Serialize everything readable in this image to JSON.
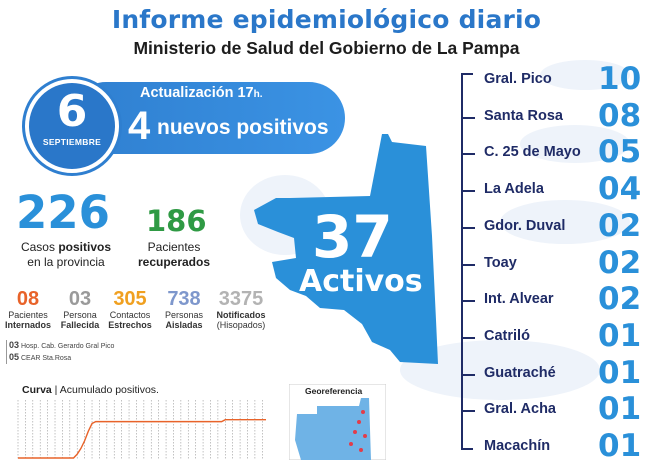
{
  "header": {
    "title": "Informe epidemiológico diario",
    "subtitle": "Ministerio de Salud del Gobierno de La Pampa"
  },
  "date": {
    "day": "6",
    "month": "SEPTIEMBRE"
  },
  "update": {
    "label": "Actualización 17",
    "suffix": "h."
  },
  "new_cases": {
    "value": "4",
    "label": "nuevos positivos"
  },
  "totals": {
    "positive": {
      "value": "226",
      "label_pre": "Casos ",
      "label_bold": "positivos",
      "label_post": "en la provincia"
    },
    "recovered": {
      "value": "186",
      "label": "Pacientes",
      "label_bold": "recuperados"
    }
  },
  "stats": [
    {
      "value": "08",
      "line1": "Pacientes",
      "line2": "Internados",
      "color": "#e8632a"
    },
    {
      "value": "03",
      "line1": "Persona",
      "line2": "Fallecida",
      "color": "#9a9a9a"
    },
    {
      "value": "305",
      "line1": "Contactos",
      "line2": "Estrechos",
      "color": "#f0a020"
    },
    {
      "value": "738",
      "line1": "Personas",
      "line2": "Aisladas",
      "color": "#7e97cc"
    },
    {
      "value": "3375",
      "line1": "Notificados",
      "line2": "(Hisopados)",
      "color": "#b3b3b3"
    }
  ],
  "notes": [
    {
      "num": "03",
      "text": "Hosp. Cab. Gerardo Gral Pico"
    },
    {
      "num": "05",
      "text": "CEAR Sta.Rosa"
    }
  ],
  "chart_title": {
    "bold": "Curva",
    "rest": " | Acumulado positivos."
  },
  "chart_data": {
    "type": "line",
    "title": "Curva | Acumulado positivos.",
    "series": [
      {
        "values": [
          0,
          0,
          0,
          0,
          0,
          0,
          0,
          0,
          0,
          0,
          0,
          0,
          0,
          0,
          0,
          0,
          2,
          5,
          9,
          14,
          18,
          19,
          19,
          19,
          19,
          19,
          19,
          19,
          19,
          19,
          19,
          19,
          19,
          19,
          19,
          19,
          19,
          19,
          19,
          19,
          19,
          19,
          19,
          19,
          19,
          19,
          19,
          19,
          19,
          19,
          19,
          19,
          19,
          19,
          19,
          19,
          20,
          20,
          20,
          20,
          20,
          20,
          20,
          20,
          20,
          20,
          20,
          20
        ]
      }
    ],
    "grid": true
  },
  "map": {
    "active_value": "37",
    "active_label": "Activos",
    "color": "#2a90d9"
  },
  "georef": {
    "title": "Georeferencia"
  },
  "localities": [
    {
      "name": "Gral. Pico",
      "count": "10"
    },
    {
      "name": "Santa Rosa",
      "count": "08"
    },
    {
      "name": "C. 25 de Mayo",
      "count": "05"
    },
    {
      "name": "La Adela",
      "count": "04"
    },
    {
      "name": "Gdor. Duval",
      "count": "02"
    },
    {
      "name": "Toay",
      "count": "02"
    },
    {
      "name": "Int. Alvear",
      "count": "02"
    },
    {
      "name": "Catriló",
      "count": "01"
    },
    {
      "name": "Guatraché",
      "count": "01"
    },
    {
      "name": "Gral. Acha",
      "count": "01"
    },
    {
      "name": "Macachín",
      "count": "01"
    }
  ]
}
